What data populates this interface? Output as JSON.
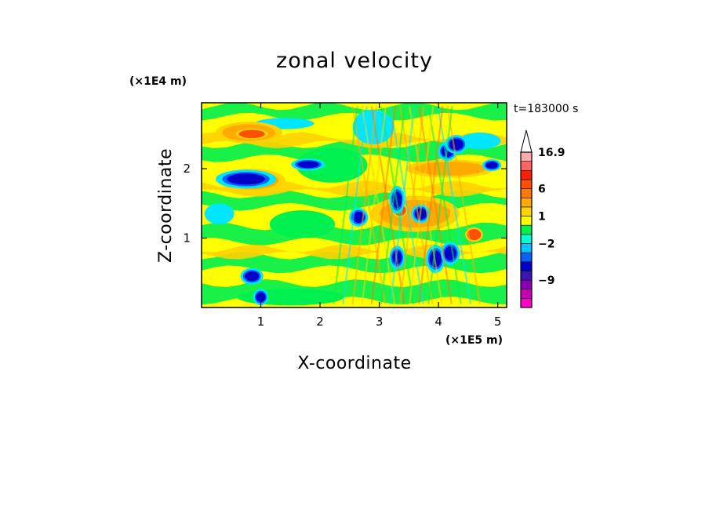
{
  "chart_data": {
    "type": "heatmap",
    "title": "zonal velocity",
    "xlabel": "X-coordinate",
    "ylabel": "Z-coordinate",
    "x_units": "(×1E5 m)",
    "y_units": "(×1E4 m)",
    "time_label": "t=183000 s",
    "xlim": [
      0,
      5.15
    ],
    "ylim": [
      0,
      2.95
    ],
    "xticks": [
      1,
      2,
      3,
      4,
      5
    ],
    "yticks": [
      1,
      2
    ],
    "x_tick_labels": [
      "1",
      "2",
      "3",
      "4",
      "5"
    ],
    "y_tick_labels": [
      "1",
      "2"
    ],
    "grid": false,
    "colorbar": {
      "position": "right",
      "extend": "max",
      "levels": [
        {
          "color": "#ff00c8"
        },
        {
          "color": "#c800b4"
        },
        {
          "color": "#8c00b4"
        },
        {
          "color": "#3c14b4"
        },
        {
          "color": "#0000c8"
        },
        {
          "color": "#0064ff"
        },
        {
          "color": "#00c8ff"
        },
        {
          "color": "#00ffd2"
        },
        {
          "color": "#00f050"
        },
        {
          "color": "#ffff00"
        },
        {
          "color": "#ffd200"
        },
        {
          "color": "#ffaa00"
        },
        {
          "color": "#ff7800"
        },
        {
          "color": "#ff5000"
        },
        {
          "color": "#ff1e00"
        },
        {
          "color": "#ff6464"
        },
        {
          "color": "#ffaaaa"
        }
      ],
      "tick_labels": [
        {
          "text": "16.9",
          "after_level": 17
        },
        {
          "text": "6",
          "after_level": 13
        },
        {
          "text": "1",
          "after_level": 10
        },
        {
          "text": "−2",
          "after_level": 7
        },
        {
          "text": "−9",
          "after_level": 3
        }
      ]
    },
    "regions": [
      {
        "x": 0.8,
        "z": 2.52,
        "rx": 0.45,
        "rz": 0.12,
        "level": "orange"
      },
      {
        "x": 0.85,
        "z": 1.83,
        "rx": 0.45,
        "rz": 0.13,
        "level": "orange"
      },
      {
        "x": 2.2,
        "z": 2.05,
        "rx": 0.6,
        "rz": 0.25,
        "level": "green"
      },
      {
        "x": 1.7,
        "z": 1.2,
        "rx": 0.55,
        "rz": 0.2,
        "level": "green"
      },
      {
        "x": 4.2,
        "z": 2.0,
        "rx": 0.6,
        "rz": 0.1,
        "level": "orange"
      },
      {
        "x": 3.6,
        "z": 1.35,
        "rx": 0.6,
        "rz": 0.2,
        "level": "orange"
      },
      {
        "x": 0.75,
        "z": 1.85,
        "rx": 0.32,
        "rz": 0.08,
        "level": "blue"
      },
      {
        "x": 1.8,
        "z": 2.06,
        "rx": 0.18,
        "rz": 0.05,
        "level": "blue"
      },
      {
        "x": 4.9,
        "z": 2.05,
        "rx": 0.1,
        "rz": 0.05,
        "level": "blue"
      },
      {
        "x": 3.3,
        "z": 1.55,
        "rx": 0.08,
        "rz": 0.12,
        "level": "blue"
      },
      {
        "x": 4.15,
        "z": 2.25,
        "rx": 0.1,
        "rz": 0.08,
        "level": "blue"
      },
      {
        "x": 4.3,
        "z": 2.35,
        "rx": 0.12,
        "rz": 0.08,
        "level": "blue"
      },
      {
        "x": 3.7,
        "z": 1.35,
        "rx": 0.1,
        "rz": 0.08,
        "level": "blue"
      },
      {
        "x": 3.95,
        "z": 0.7,
        "rx": 0.1,
        "rz": 0.12,
        "level": "blue"
      },
      {
        "x": 4.2,
        "z": 0.78,
        "rx": 0.1,
        "rz": 0.1,
        "level": "blue"
      },
      {
        "x": 3.3,
        "z": 0.72,
        "rx": 0.08,
        "rz": 0.1,
        "level": "blue"
      },
      {
        "x": 2.65,
        "z": 1.3,
        "rx": 0.1,
        "rz": 0.08,
        "level": "blue"
      },
      {
        "x": 0.85,
        "z": 0.45,
        "rx": 0.12,
        "rz": 0.07,
        "level": "blue"
      },
      {
        "x": 1.0,
        "z": 0.15,
        "rx": 0.08,
        "rz": 0.07,
        "level": "blue"
      },
      {
        "x": 3.35,
        "z": 1.4,
        "rx": 0.1,
        "rz": 0.08,
        "level": "red"
      },
      {
        "x": 4.6,
        "z": 1.05,
        "rx": 0.12,
        "rz": 0.08,
        "level": "red"
      },
      {
        "x": 0.85,
        "z": 2.5,
        "rx": 0.22,
        "rz": 0.06,
        "level": "red"
      },
      {
        "x": 2.9,
        "z": 2.6,
        "rx": 0.35,
        "rz": 0.25,
        "level": "cyan"
      },
      {
        "x": 4.7,
        "z": 2.4,
        "rx": 0.35,
        "rz": 0.12,
        "level": "cyan"
      },
      {
        "x": 1.4,
        "z": 2.65,
        "rx": 0.5,
        "rz": 0.08,
        "level": "cyan"
      },
      {
        "x": 0.3,
        "z": 1.35,
        "rx": 0.25,
        "rz": 0.15,
        "level": "cyan"
      },
      {
        "x": 1.5,
        "z": 0.15,
        "rx": 0.9,
        "rz": 0.12,
        "level": "green"
      }
    ]
  }
}
